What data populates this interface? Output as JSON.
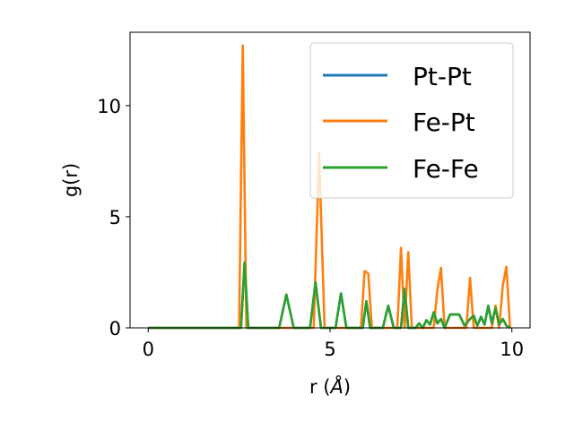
{
  "chart_data": {
    "type": "line",
    "xlabel_prefix": "r (",
    "xlabel_unit": "Å",
    "xlabel_suffix": ")",
    "ylabel": "g(r)",
    "xlim": [
      -0.5,
      10.5
    ],
    "ylim": [
      0,
      13.3
    ],
    "xticks": [
      0,
      5,
      10
    ],
    "yticks": [
      0,
      5,
      10
    ],
    "grid": false,
    "legend_position": "upper right",
    "series": [
      {
        "name": "Pt-Pt",
        "color": "#1f77b4",
        "x": [
          0,
          2.55,
          2.65,
          2.75,
          3.6,
          3.8,
          4.0,
          4.45,
          4.6,
          4.75,
          5.15,
          5.3,
          5.45,
          5.9,
          6.0,
          6.1,
          6.45,
          6.6,
          6.75,
          6.95,
          7.05,
          7.15,
          7.35,
          7.45,
          7.55,
          7.65,
          7.75,
          7.85,
          7.95,
          8.05,
          8.15,
          8.3,
          8.55,
          8.7,
          8.85,
          8.95,
          9.05,
          9.15,
          9.25,
          9.35,
          9.45,
          9.55,
          9.65,
          9.75,
          9.85,
          9.95
        ],
        "y": [
          0,
          0,
          2.95,
          0,
          0,
          1.5,
          0,
          0,
          2.05,
          0,
          0,
          1.55,
          0,
          0,
          1.2,
          0,
          0,
          1.0,
          0,
          0,
          1.75,
          0,
          0,
          0.2,
          0,
          0.35,
          0.15,
          0.7,
          0.2,
          0.4,
          0,
          0.6,
          0.6,
          0.1,
          0.4,
          0.55,
          0.1,
          0.5,
          0.15,
          1.0,
          0.2,
          0.9,
          0.15,
          0.4,
          0.1,
          0
        ],
        "visible_line": false
      },
      {
        "name": "Fe-Pt",
        "color": "#ff7f0e",
        "x": [
          0,
          2.5,
          2.6,
          2.7,
          4.55,
          4.7,
          4.85,
          5.85,
          5.95,
          6.05,
          6.15,
          6.85,
          6.95,
          7.05,
          7.15,
          7.25,
          7.85,
          7.95,
          8.05,
          8.15,
          8.75,
          8.85,
          8.95,
          9.05,
          9.45,
          9.55,
          9.65,
          9.75,
          9.85,
          9.95
        ],
        "y": [
          0,
          0,
          12.7,
          0,
          0,
          7.9,
          0,
          0,
          2.55,
          2.45,
          0,
          0,
          3.6,
          0,
          3.4,
          0,
          0,
          1.7,
          2.7,
          0,
          0,
          2.25,
          0,
          0,
          0,
          1.0,
          0,
          1.9,
          2.75,
          0
        ]
      },
      {
        "name": "Fe-Fe",
        "color": "#2ca02c",
        "x": [
          0,
          2.55,
          2.65,
          2.75,
          3.6,
          3.8,
          4.0,
          4.45,
          4.6,
          4.75,
          5.15,
          5.3,
          5.45,
          5.9,
          6.0,
          6.1,
          6.45,
          6.6,
          6.75,
          6.95,
          7.05,
          7.15,
          7.35,
          7.45,
          7.55,
          7.65,
          7.75,
          7.85,
          7.95,
          8.05,
          8.15,
          8.3,
          8.55,
          8.7,
          8.85,
          8.95,
          9.05,
          9.15,
          9.25,
          9.35,
          9.45,
          9.55,
          9.65,
          9.75,
          9.85,
          9.95
        ],
        "y": [
          0,
          0,
          2.95,
          0,
          0,
          1.5,
          0,
          0,
          2.05,
          0,
          0,
          1.55,
          0,
          0,
          1.2,
          0,
          0,
          1.0,
          0,
          0,
          1.75,
          0,
          0,
          0.2,
          0,
          0.35,
          0.15,
          0.7,
          0.2,
          0.4,
          0,
          0.6,
          0.6,
          0.1,
          0.4,
          0.55,
          0.1,
          0.5,
          0.15,
          1.0,
          0.2,
          0.9,
          0.15,
          0.4,
          0.1,
          0
        ]
      }
    ]
  }
}
